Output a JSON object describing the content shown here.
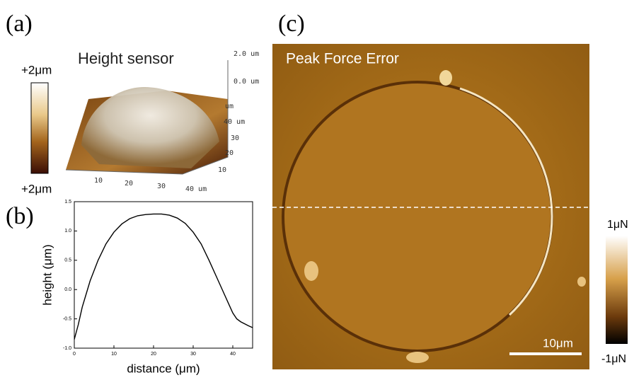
{
  "panel_a": {
    "label": "(a)",
    "title": "Height sensor",
    "colorbar_top": "+2μm",
    "colorbar_bottom": "+2μm",
    "z_labels": [
      "2.0 um",
      "0.0 um",
      "um"
    ],
    "y_labels": [
      "40 um",
      "30",
      "20",
      "10"
    ],
    "x_labels": [
      "10",
      "20",
      "30",
      "40 um"
    ]
  },
  "panel_b": {
    "label": "(b)"
  },
  "chart_data": {
    "type": "line",
    "x_label": "distance (μm)",
    "y_label": "height (μm)",
    "x": [
      0,
      1,
      2,
      4,
      6,
      8,
      10,
      12,
      14,
      16,
      18,
      20,
      22,
      24,
      26,
      28,
      30,
      32,
      34,
      36,
      38,
      39,
      40,
      41,
      42,
      44,
      45
    ],
    "values": [
      -0.85,
      -0.6,
      -0.3,
      0.15,
      0.5,
      0.78,
      0.98,
      1.12,
      1.21,
      1.26,
      1.28,
      1.29,
      1.29,
      1.27,
      1.22,
      1.13,
      0.98,
      0.78,
      0.5,
      0.2,
      -0.1,
      -0.25,
      -0.4,
      -0.5,
      -0.55,
      -0.62,
      -0.65
    ],
    "color": "#000000",
    "xlim": [
      0,
      45
    ],
    "ylim": [
      -1,
      1.5
    ],
    "xticks": [
      0,
      10,
      20,
      30,
      40
    ],
    "yticks": [
      {
        "value": -1,
        "label": "-1.0"
      },
      -0.5,
      {
        "value": 0,
        "label": "0.0"
      },
      0.5,
      {
        "value": 1,
        "label": "1.0"
      },
      1.5
    ]
  },
  "panel_c": {
    "label": "(c)",
    "title": "Peak Force Error",
    "scale_bar": "10μm",
    "colorbar_top": "1μN",
    "colorbar_bottom": "-1μN"
  }
}
